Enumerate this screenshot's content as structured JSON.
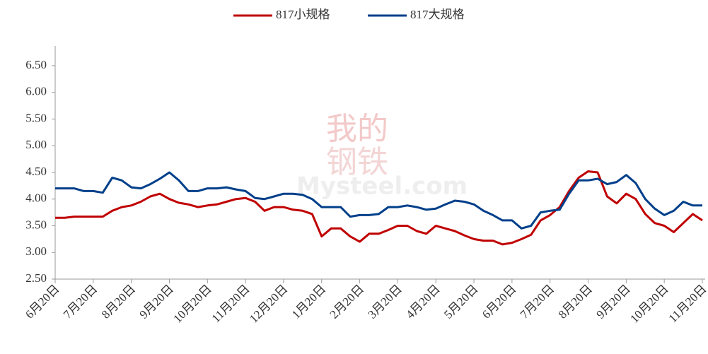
{
  "chart_data": {
    "type": "line",
    "watermark": [
      "我的",
      "钢铁",
      "Mysteel.com"
    ],
    "categories": [
      "6月20日",
      null,
      null,
      null,
      "7月20日",
      null,
      null,
      null,
      "8月20日",
      null,
      null,
      null,
      "9月20日",
      null,
      null,
      null,
      "10月20日",
      null,
      null,
      null,
      "11月20日",
      null,
      null,
      null,
      "12月20日",
      null,
      null,
      null,
      "1月20日",
      null,
      null,
      null,
      "2月20日",
      null,
      null,
      null,
      "3月20日",
      null,
      null,
      null,
      "4月20日",
      null,
      null,
      null,
      "5月20日",
      null,
      null,
      null,
      "6月20日",
      null,
      null,
      null,
      "7月20日",
      null,
      null,
      null,
      "8月20日",
      null,
      null,
      null,
      "9月20日",
      null,
      null,
      null,
      "10月20日",
      null,
      null,
      null,
      "11月20日"
    ],
    "series": [
      {
        "name": "817小规格",
        "color": "#c00000",
        "values": [
          3.65,
          3.65,
          3.67,
          3.67,
          3.67,
          3.67,
          3.78,
          3.85,
          3.88,
          3.95,
          4.05,
          4.1,
          4.0,
          3.93,
          3.9,
          3.85,
          3.88,
          3.9,
          3.95,
          4.0,
          4.02,
          3.95,
          3.78,
          3.85,
          3.85,
          3.8,
          3.78,
          3.72,
          3.3,
          3.45,
          3.45,
          3.3,
          3.2,
          3.35,
          3.35,
          3.42,
          3.5,
          3.5,
          3.4,
          3.35,
          3.5,
          3.45,
          3.4,
          3.32,
          3.25,
          3.22,
          3.22,
          3.15,
          3.18,
          3.25,
          3.33,
          3.6,
          3.7,
          3.85,
          4.15,
          4.4,
          4.52,
          4.5,
          4.05,
          3.92,
          4.1,
          4.0,
          3.72,
          3.55,
          3.5,
          3.38,
          3.55,
          3.72,
          3.6
        ]
      },
      {
        "name": "817大规格",
        "color": "#003f8a",
        "values": [
          4.2,
          4.2,
          4.2,
          4.15,
          4.15,
          4.12,
          4.4,
          4.35,
          4.22,
          4.2,
          4.28,
          4.38,
          4.5,
          4.35,
          4.15,
          4.15,
          4.2,
          4.2,
          4.22,
          4.18,
          4.15,
          4.02,
          4.0,
          4.05,
          4.1,
          4.1,
          4.08,
          4.0,
          3.85,
          3.85,
          3.85,
          3.67,
          3.7,
          3.7,
          3.72,
          3.85,
          3.85,
          3.88,
          3.85,
          3.8,
          3.82,
          3.9,
          3.97,
          3.95,
          3.9,
          3.78,
          3.7,
          3.6,
          3.6,
          3.45,
          3.5,
          3.75,
          3.78,
          3.8,
          4.1,
          4.35,
          4.35,
          4.38,
          4.28,
          4.32,
          4.45,
          4.3,
          4.0,
          3.82,
          3.7,
          3.78,
          3.95,
          3.88,
          3.88
        ]
      }
    ],
    "ylim": [
      2.5,
      6.87
    ],
    "yticks": [
      {
        "value": 2.5,
        "label": "2.50"
      },
      {
        "value": 3,
        "label": "3.00"
      },
      {
        "value": 3.5,
        "label": "3.50"
      },
      {
        "value": 4,
        "label": "4.00"
      },
      {
        "value": 4.5,
        "label": "4.50"
      },
      {
        "value": 5,
        "label": "5.00"
      },
      {
        "value": 5.5,
        "label": "5.50"
      },
      {
        "value": 6,
        "label": "6.00"
      },
      {
        "value": 6.5,
        "label": "6.50"
      }
    ],
    "legend": "top"
  }
}
